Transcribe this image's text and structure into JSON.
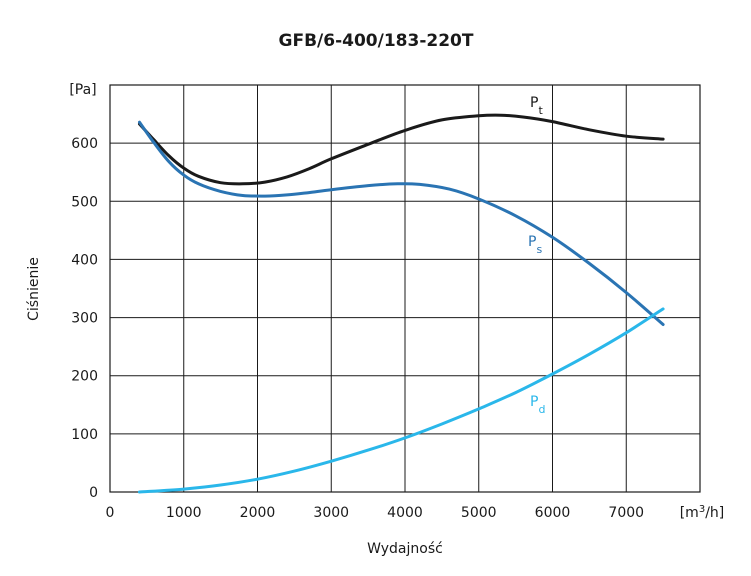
{
  "chart_data": {
    "type": "line",
    "title": "GFB/6-400/183-220T",
    "xlabel": "Wydajność",
    "ylabel": "Ciśnienie",
    "x_unit": {
      "pre": "[m",
      "sup": "3",
      "post": "/h]"
    },
    "y_unit": "[Pa]",
    "xlim": [
      0,
      8000
    ],
    "ylim": [
      0,
      700
    ],
    "x_ticks": [
      0,
      1000,
      2000,
      3000,
      4000,
      5000,
      6000,
      7000
    ],
    "y_ticks": [
      0,
      100,
      200,
      300,
      400,
      500,
      600
    ],
    "grid": true,
    "series": [
      {
        "name": "Pt",
        "label_main": "P",
        "label_sub": "t",
        "color": "#1a1a1a",
        "x": [
          400,
          600,
          800,
          1000,
          1200,
          1500,
          1800,
          2100,
          2400,
          2700,
          3000,
          3500,
          4000,
          4500,
          5000,
          5300,
          5600,
          6000,
          6500,
          7000,
          7500
        ],
        "y": [
          633,
          605,
          578,
          557,
          543,
          532,
          530,
          533,
          542,
          556,
          573,
          598,
          622,
          640,
          647,
          648,
          645,
          637,
          623,
          612,
          607
        ]
      },
      {
        "name": "Ps",
        "label_main": "P",
        "label_sub": "s",
        "color": "#2a74b3",
        "x": [
          400,
          600,
          800,
          1000,
          1200,
          1500,
          1800,
          2100,
          2400,
          2700,
          3000,
          3500,
          3900,
          4200,
          4600,
          5000,
          5500,
          6000,
          6500,
          7000,
          7500
        ],
        "y": [
          636,
          600,
          568,
          545,
          530,
          517,
          510,
          509,
          511,
          515,
          520,
          527,
          530,
          529,
          521,
          504,
          475,
          438,
          393,
          343,
          288
        ]
      },
      {
        "name": "Pd",
        "label_main": "P",
        "label_sub": "d",
        "color": "#2ab7ea",
        "x": [
          400,
          1000,
          1500,
          2000,
          2500,
          3000,
          3500,
          4000,
          4500,
          5000,
          5500,
          6000,
          6500,
          7000,
          7500
        ],
        "y": [
          0,
          5,
          12,
          22,
          36,
          53,
          72,
          93,
          117,
          143,
          171,
          203,
          237,
          274,
          315
        ]
      }
    ]
  }
}
